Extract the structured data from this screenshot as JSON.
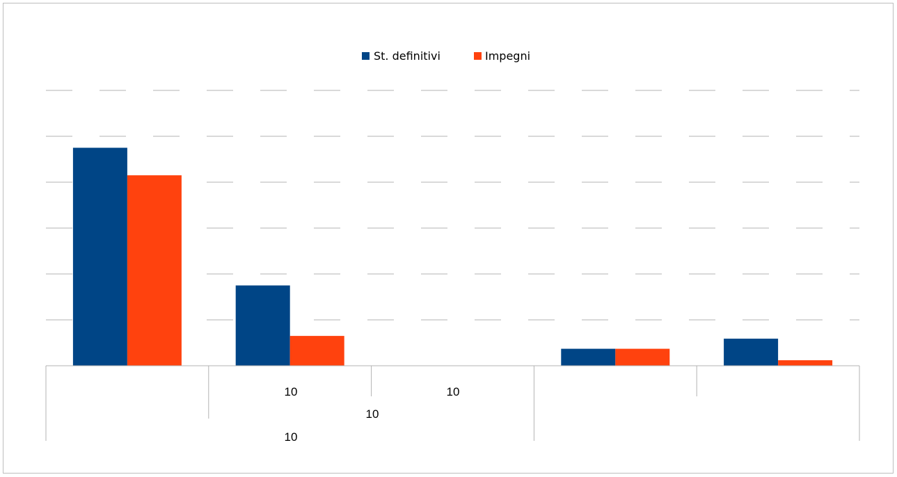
{
  "chart_data": {
    "type": "bar",
    "title": "",
    "ylabel": "",
    "xlabel": "",
    "categories": [
      "",
      "",
      "",
      "",
      ""
    ],
    "series": [
      {
        "name": "St. definitivi",
        "color": "#004586",
        "values": [
          4.75,
          1.75,
          0,
          0.37,
          0.59
        ]
      },
      {
        "name": "Impegni",
        "color": "#ff420e",
        "values": [
          4.15,
          0.65,
          0,
          0.37,
          0.12
        ]
      }
    ],
    "ylim": [
      0,
      6
    ],
    "grid": true,
    "legend_position": "top",
    "tick_labels": [
      "10",
      "10",
      "10",
      "10"
    ]
  }
}
